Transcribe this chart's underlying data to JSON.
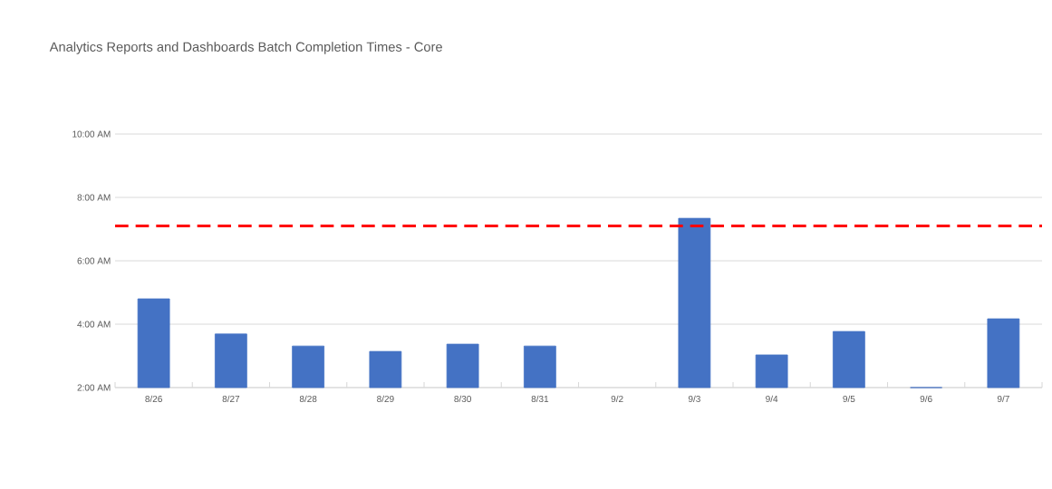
{
  "chart_data": {
    "type": "bar",
    "title": "Analytics Reports and Dashboards Batch Completion Times - Core",
    "categories": [
      "8/26",
      "8/27",
      "8/28",
      "8/29",
      "8/30",
      "8/31",
      "9/2",
      "9/3",
      "9/4",
      "9/5",
      "9/6",
      "9/7"
    ],
    "values": [
      4.8,
      3.69,
      3.31,
      3.14,
      3.37,
      3.31,
      null,
      7.34,
      3.03,
      3.77,
      2.0,
      4.17
    ],
    "color": "#4472c4",
    "ylim": [
      2,
      10
    ],
    "yticks": [
      {
        "value": 2,
        "label": "2:00 AM"
      },
      {
        "value": 4,
        "label": "4:00 AM"
      },
      {
        "value": 6,
        "label": "6:00 AM"
      },
      {
        "value": 8,
        "label": "8:00 AM"
      },
      {
        "value": 10,
        "label": "10:00 AM"
      }
    ],
    "ref_lines": [
      {
        "axis": "y",
        "value": 7.1,
        "color": "#ff0000",
        "line_style": "dashed"
      }
    ],
    "grid": "y"
  }
}
